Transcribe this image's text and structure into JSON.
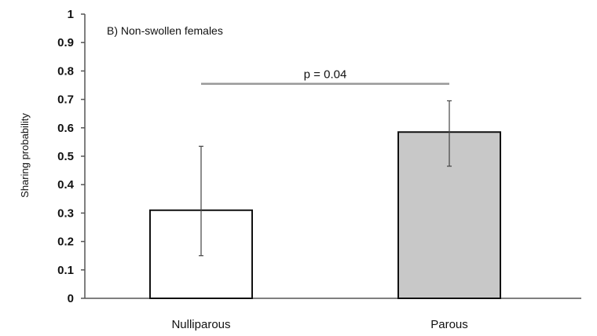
{
  "chart_data": {
    "type": "bar",
    "title": "B) Non-swollen females",
    "ylabel": "Sharing probability",
    "xlabel": "",
    "categories": [
      "Nulliparous",
      "Parous"
    ],
    "values": [
      0.31,
      0.585
    ],
    "error_low": [
      0.15,
      0.465
    ],
    "error_high": [
      0.535,
      0.695
    ],
    "bar_colors": [
      "#ffffff",
      "#c8c8c8"
    ],
    "ylim": [
      0,
      1
    ],
    "yticks": [
      "0",
      "0.1",
      "0.2",
      "0.3",
      "0.4",
      "0.5",
      "0.6",
      "0.7",
      "0.8",
      "0.9",
      "1"
    ],
    "grid": false,
    "legend": "none",
    "annotations": [
      {
        "text": "p = 0.04",
        "between": [
          "Nulliparous",
          "Parous"
        ],
        "y": 0.755
      }
    ]
  }
}
